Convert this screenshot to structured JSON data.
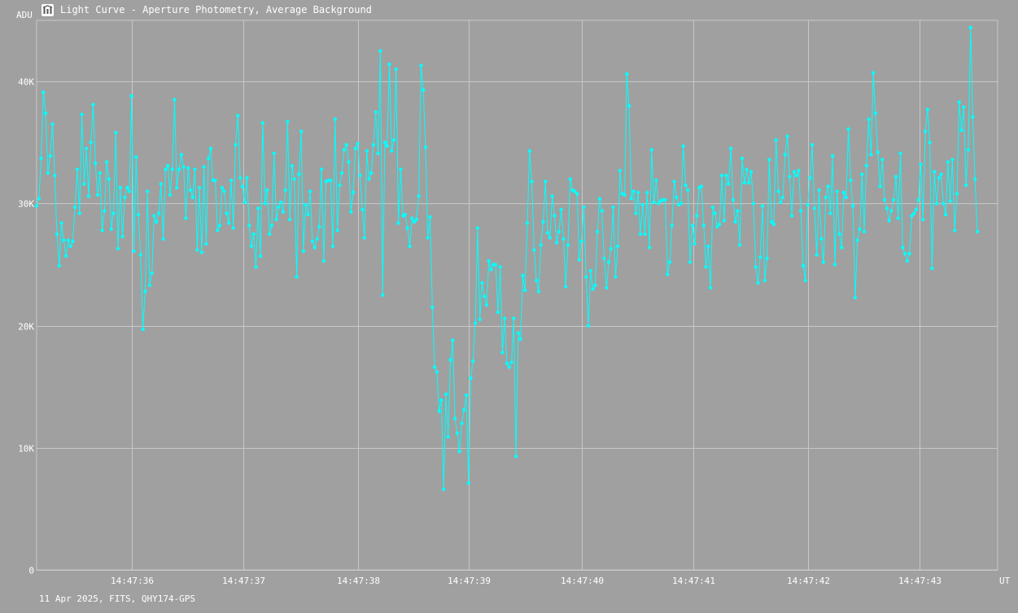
{
  "window": {
    "title": "Light Curve - Aperture Photometry, Average Background",
    "icon": "chart-app-icon"
  },
  "footer": "11 Apr 2025, FITS, QHY174-GPS",
  "colors": {
    "background": "#a0a0a0",
    "grid": "#c8c8c8",
    "series": "#00ffff",
    "text": "#ffffff"
  },
  "chart_data": {
    "type": "line",
    "title": "Light Curve - Aperture Photometry, Average Background",
    "ylabel": "ADU",
    "xlabel": "UT",
    "ylim": [
      0,
      45000
    ],
    "xlim": [
      "14:47:35.0",
      "14:47:43.5"
    ],
    "yticks": [
      {
        "value": 0,
        "label": "0"
      },
      {
        "value": 10000,
        "label": "10K"
      },
      {
        "value": 20000,
        "label": "20K"
      },
      {
        "value": 30000,
        "label": "30K"
      },
      {
        "value": 40000,
        "label": "40K"
      }
    ],
    "xticks": [
      {
        "value": 0.84,
        "label": "14:47:36"
      },
      {
        "value": 1.83,
        "label": "14:47:37"
      },
      {
        "value": 2.84,
        "label": "14:47:38"
      },
      {
        "value": 3.82,
        "label": "14:47:39"
      },
      {
        "value": 4.82,
        "label": "14:47:40"
      },
      {
        "value": 5.81,
        "label": "14:47:41"
      },
      {
        "value": 6.82,
        "label": "14:47:42"
      },
      {
        "value": 7.81,
        "label": "14:47:43"
      }
    ],
    "x_note": "x values are seconds after 14:47:35",
    "grid": true,
    "legend": "none",
    "series": [
      {
        "x_start": 0.0,
        "x_step": 0.02,
        "values": [
          29800,
          30400,
          33700,
          39100,
          37400,
          32500,
          33900,
          36500,
          32300,
          27500,
          24900,
          28400,
          27000,
          25700,
          27000,
          26500,
          26900,
          29700,
          32800,
          29200,
          37300,
          31600,
          34500,
          30600,
          35000,
          38100,
          33300,
          30700,
          32500,
          27800,
          29400,
          33400,
          32000,
          27900,
          29200,
          35800,
          26300,
          31300,
          27300,
          30500,
          31300,
          31000,
          38800,
          26100,
          33800,
          29100,
          25800,
          19700,
          22800,
          31000,
          23300,
          24300,
          29000,
          28500,
          29200,
          31600,
          27100,
          32800,
          33100,
          30700,
          32800,
          38500,
          31300,
          32800,
          34000,
          33000,
          28800,
          32900,
          31100,
          30500,
          32800,
          26200,
          31300,
          26000,
          33000,
          26700,
          33700,
          34500,
          31900,
          31900,
          27800,
          28200,
          31300,
          31000,
          29200,
          28400,
          31900,
          28000,
          34800,
          37200,
          32100,
          31400,
          30100,
          32100,
          28200,
          26500,
          27500,
          24800,
          29600,
          25700,
          36600,
          30000,
          31100,
          27500,
          28200,
          34100,
          28700,
          29700,
          30100,
          29300,
          31100,
          36700,
          28700,
          33100,
          32000,
          24000,
          32400,
          35900,
          26100,
          29900,
          29100,
          31000,
          26900,
          26400,
          27100,
          28100,
          32800,
          25300,
          31800,
          31900,
          31900,
          26500,
          36900,
          27800,
          31500,
          32500,
          34400,
          34800,
          33400,
          29300,
          30900,
          34500,
          34900,
          32300,
          29500,
          27200,
          34300,
          32000,
          32500,
          34800,
          37500,
          34100,
          42500,
          22500,
          35000,
          34700,
          41400,
          34300,
          35200,
          41000,
          28400,
          32800,
          29000,
          29100,
          28000,
          26500,
          28800,
          28500,
          28700,
          30600,
          41300,
          39300,
          34600,
          27200,
          28900,
          21500,
          16600,
          16200,
          13000,
          13900,
          6600,
          14400,
          10900,
          17200,
          18800,
          12400,
          11200,
          9700,
          12000,
          13100,
          14300,
          7100,
          15700,
          17100,
          20200,
          28000,
          20500,
          23500,
          22400,
          21700,
          25300,
          24600,
          25000,
          25000,
          21100,
          24800,
          17800,
          20600,
          16900,
          16600,
          17000,
          20600,
          9300,
          19400,
          18900,
          24100,
          22900,
          28400,
          34300,
          31800,
          26200,
          23700,
          22800,
          26600,
          28500,
          31800,
          27600,
          27200,
          30600,
          29000,
          26800,
          27700,
          29500,
          27100,
          23200,
          26600,
          32000,
          31100,
          31000,
          30800,
          25400,
          26900,
          29700,
          24000,
          20000,
          24500,
          23000,
          23300,
          27700,
          30400,
          29400,
          25500,
          23100,
          25200,
          26300,
          29700,
          24000,
          26500,
          32700,
          30800,
          30700,
          40600,
          38000,
          30400,
          31000,
          29200,
          30900,
          27500,
          29900,
          27500,
          30900,
          26400,
          34400,
          30100,
          31900,
          30000,
          30200,
          30300,
          30300,
          24200,
          25200,
          28200,
          31800,
          30500,
          29900,
          30000,
          34700,
          31500,
          31100,
          25200,
          28200,
          26700,
          29000,
          31300,
          31400,
          28200,
          24800,
          26500,
          23100,
          29700,
          29200,
          28100,
          28300,
          32300,
          28600,
          32300,
          31600,
          34500,
          30300,
          28500,
          29400,
          26600,
          33700,
          31700,
          32800,
          31700,
          32600,
          30000,
          24800,
          23500,
          25600,
          29800,
          23700,
          25500,
          33600,
          28500,
          28300,
          35200,
          31000,
          30100,
          30500,
          34000,
          35500,
          32200,
          29000,
          32600,
          32300,
          32700,
          29400,
          24900,
          23700,
          29900,
          32100,
          34800,
          29600,
          25800,
          31100,
          27100,
          25200,
          30500,
          31400,
          29200,
          33900,
          25000,
          31000,
          27500,
          26400,
          30900,
          30500,
          36100,
          31900,
          29800,
          22300,
          27000,
          27900,
          32400,
          27700,
          33100,
          36900,
          34000,
          40700,
          37400,
          34200,
          31400,
          33600,
          30300,
          29600,
          28600,
          29400,
          30300,
          32200,
          28800,
          34100,
          26400,
          25900,
          25300,
          25900,
          29000,
          29200,
          29500,
          30300,
          33200,
          28700,
          35900,
          37700,
          35000,
          24700,
          32600,
          30000,
          32100,
          32400,
          30000,
          29100,
          33400,
          30200,
          33600,
          27800,
          30800,
          38300,
          36000,
          37900,
          31500,
          34400,
          44400,
          37100,
          32000,
          27700
        ]
      }
    ]
  }
}
